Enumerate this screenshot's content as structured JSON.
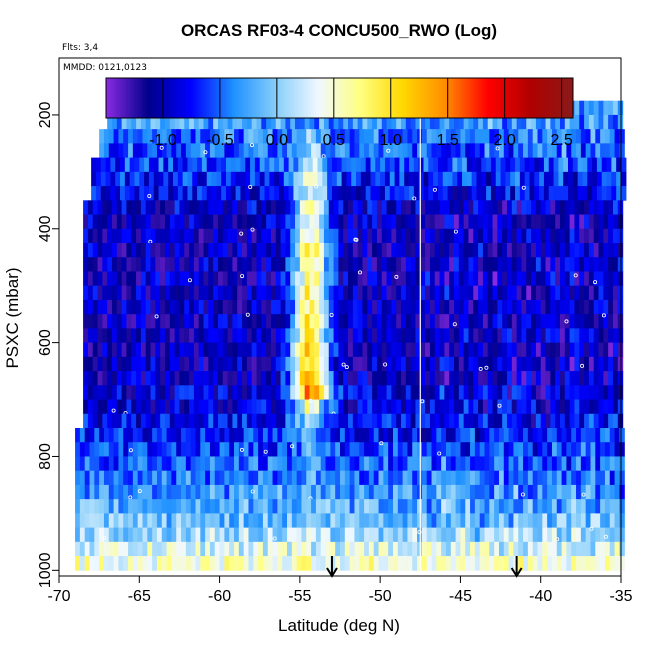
{
  "chart_data": {
    "type": "heatmap",
    "title": "ORCAS RF03-4 CONCU500_RWO (Log)",
    "flights_label": "Flts: 3,4",
    "mmdd_label": "MMDD: 0121,0123",
    "xlabel": "Latitude (deg N)",
    "ylabel": "PSXC (mbar)",
    "xlim": [
      -70,
      -35
    ],
    "ylim": [
      1010,
      100
    ],
    "xticks": [
      -70,
      -65,
      -60,
      -55,
      -50,
      -45,
      -40,
      -35
    ],
    "yticks": [
      200,
      400,
      600,
      800,
      1000
    ],
    "colorbar": {
      "range": [
        -1.5,
        2.6
      ],
      "ticks": [
        -1.0,
        -0.5,
        0.0,
        0.5,
        1.0,
        1.5,
        2.0,
        2.5
      ],
      "tick_labels": [
        "-1.0",
        "-0.5",
        "0.0",
        "0.5",
        "1.0",
        "1.5",
        "2.0",
        "2.5"
      ],
      "colors": [
        "#8a2be2",
        "#00008b",
        "#0000ff",
        "#1e90ff",
        "#87cefa",
        "#f0f8ff",
        "#ffff80",
        "#ffd700",
        "#ff8c00",
        "#ff0000",
        "#b00000",
        "#8b1a1a"
      ]
    },
    "divider_lat": -47.5,
    "arrows_lat": [
      -53,
      -41.5
    ],
    "layers": [
      {
        "p_top": 175,
        "p_bot": 200,
        "lat_start": -67,
        "lat_end": -35,
        "base": -0.2,
        "noise": 0.35,
        "plume": 0.0
      },
      {
        "p_top": 200,
        "p_bot": 225,
        "lat_start": -67,
        "lat_end": -35,
        "base": -0.3,
        "noise": 0.35,
        "plume": 0.0
      },
      {
        "p_top": 225,
        "p_bot": 250,
        "lat_start": -67.5,
        "lat_end": -35,
        "base": -0.4,
        "noise": 0.35,
        "plume": 0.3
      },
      {
        "p_top": 250,
        "p_bot": 275,
        "lat_start": -67.5,
        "lat_end": -35,
        "base": -0.5,
        "noise": 0.35,
        "plume": 0.5
      },
      {
        "p_top": 275,
        "p_bot": 300,
        "lat_start": -68,
        "lat_end": -35,
        "base": -0.6,
        "noise": 0.35,
        "plume": 0.8
      },
      {
        "p_top": 300,
        "p_bot": 325,
        "lat_start": -68,
        "lat_end": -35,
        "base": -0.7,
        "noise": 0.35,
        "plume": 1.0
      },
      {
        "p_top": 325,
        "p_bot": 350,
        "lat_start": -68,
        "lat_end": -35,
        "base": -0.8,
        "noise": 0.35,
        "plume": 1.2
      },
      {
        "p_top": 350,
        "p_bot": 375,
        "lat_start": -68.5,
        "lat_end": -35,
        "base": -0.9,
        "noise": 0.35,
        "plume": 1.3
      },
      {
        "p_top": 375,
        "p_bot": 400,
        "lat_start": -68.5,
        "lat_end": -35,
        "base": -1.0,
        "noise": 0.35,
        "plume": 1.5
      },
      {
        "p_top": 400,
        "p_bot": 425,
        "lat_start": -68.5,
        "lat_end": -35,
        "base": -1.0,
        "noise": 0.35,
        "plume": 1.6
      },
      {
        "p_top": 425,
        "p_bot": 450,
        "lat_start": -68.5,
        "lat_end": -35,
        "base": -1.0,
        "noise": 0.35,
        "plume": 1.8
      },
      {
        "p_top": 450,
        "p_bot": 475,
        "lat_start": -68.5,
        "lat_end": -35,
        "base": -1.0,
        "noise": 0.35,
        "plume": 1.8
      },
      {
        "p_top": 475,
        "p_bot": 500,
        "lat_start": -68.5,
        "lat_end": -35,
        "base": -1.0,
        "noise": 0.35,
        "plume": 1.8
      },
      {
        "p_top": 500,
        "p_bot": 525,
        "lat_start": -68.5,
        "lat_end": -35,
        "base": -1.0,
        "noise": 0.35,
        "plume": 1.8
      },
      {
        "p_top": 525,
        "p_bot": 550,
        "lat_start": -68.5,
        "lat_end": -35,
        "base": -1.0,
        "noise": 0.35,
        "plume": 1.8
      },
      {
        "p_top": 550,
        "p_bot": 575,
        "lat_start": -68.5,
        "lat_end": -35,
        "base": -1.0,
        "noise": 0.35,
        "plume": 2.0
      },
      {
        "p_top": 575,
        "p_bot": 600,
        "lat_start": -68.5,
        "lat_end": -35,
        "base": -1.0,
        "noise": 0.35,
        "plume": 2.0
      },
      {
        "p_top": 600,
        "p_bot": 625,
        "lat_start": -68.5,
        "lat_end": -35,
        "base": -1.0,
        "noise": 0.35,
        "plume": 2.2
      },
      {
        "p_top": 625,
        "p_bot": 650,
        "lat_start": -68.5,
        "lat_end": -35,
        "base": -1.0,
        "noise": 0.35,
        "plume": 2.2
      },
      {
        "p_top": 650,
        "p_bot": 675,
        "lat_start": -68.5,
        "lat_end": -35,
        "base": -1.0,
        "noise": 0.35,
        "plume": 2.4
      },
      {
        "p_top": 675,
        "p_bot": 700,
        "lat_start": -68.5,
        "lat_end": -35,
        "base": -0.9,
        "noise": 0.35,
        "plume": 2.5
      },
      {
        "p_top": 700,
        "p_bot": 725,
        "lat_start": -68.5,
        "lat_end": -35,
        "base": -0.9,
        "noise": 0.35,
        "plume": 1.5
      },
      {
        "p_top": 725,
        "p_bot": 750,
        "lat_start": -68.5,
        "lat_end": -35,
        "base": -0.8,
        "noise": 0.35,
        "plume": 0.8
      },
      {
        "p_top": 750,
        "p_bot": 775,
        "lat_start": -69,
        "lat_end": -35,
        "base": -0.7,
        "noise": 0.35,
        "plume": 0.5
      },
      {
        "p_top": 775,
        "p_bot": 800,
        "lat_start": -69,
        "lat_end": -35,
        "base": -0.6,
        "noise": 0.35,
        "plume": 0.3
      },
      {
        "p_top": 800,
        "p_bot": 825,
        "lat_start": -69,
        "lat_end": -35,
        "base": -0.5,
        "noise": 0.35,
        "plume": 0.2
      },
      {
        "p_top": 825,
        "p_bot": 850,
        "lat_start": -69,
        "lat_end": -35,
        "base": -0.4,
        "noise": 0.35,
        "plume": 0.1
      },
      {
        "p_top": 850,
        "p_bot": 875,
        "lat_start": -69,
        "lat_end": -35,
        "base": -0.3,
        "noise": 0.35,
        "plume": 0.0
      },
      {
        "p_top": 875,
        "p_bot": 900,
        "lat_start": -69,
        "lat_end": -35,
        "base": -0.2,
        "noise": 0.35,
        "plume": 0.0
      },
      {
        "p_top": 900,
        "p_bot": 925,
        "lat_start": -69,
        "lat_end": -35,
        "base": -0.1,
        "noise": 0.35,
        "plume": 0.0
      },
      {
        "p_top": 925,
        "p_bot": 950,
        "lat_start": -69,
        "lat_end": -35,
        "base": 0.1,
        "noise": 0.35,
        "plume": 0.0
      },
      {
        "p_top": 950,
        "p_bot": 975,
        "lat_start": -69,
        "lat_end": -35,
        "base": 0.3,
        "noise": 0.35,
        "plume": 0.0
      },
      {
        "p_top": 975,
        "p_bot": 1000,
        "lat_start": -69,
        "lat_end": -35,
        "base": 0.5,
        "noise": 0.35,
        "plume": 0.0
      }
    ]
  }
}
